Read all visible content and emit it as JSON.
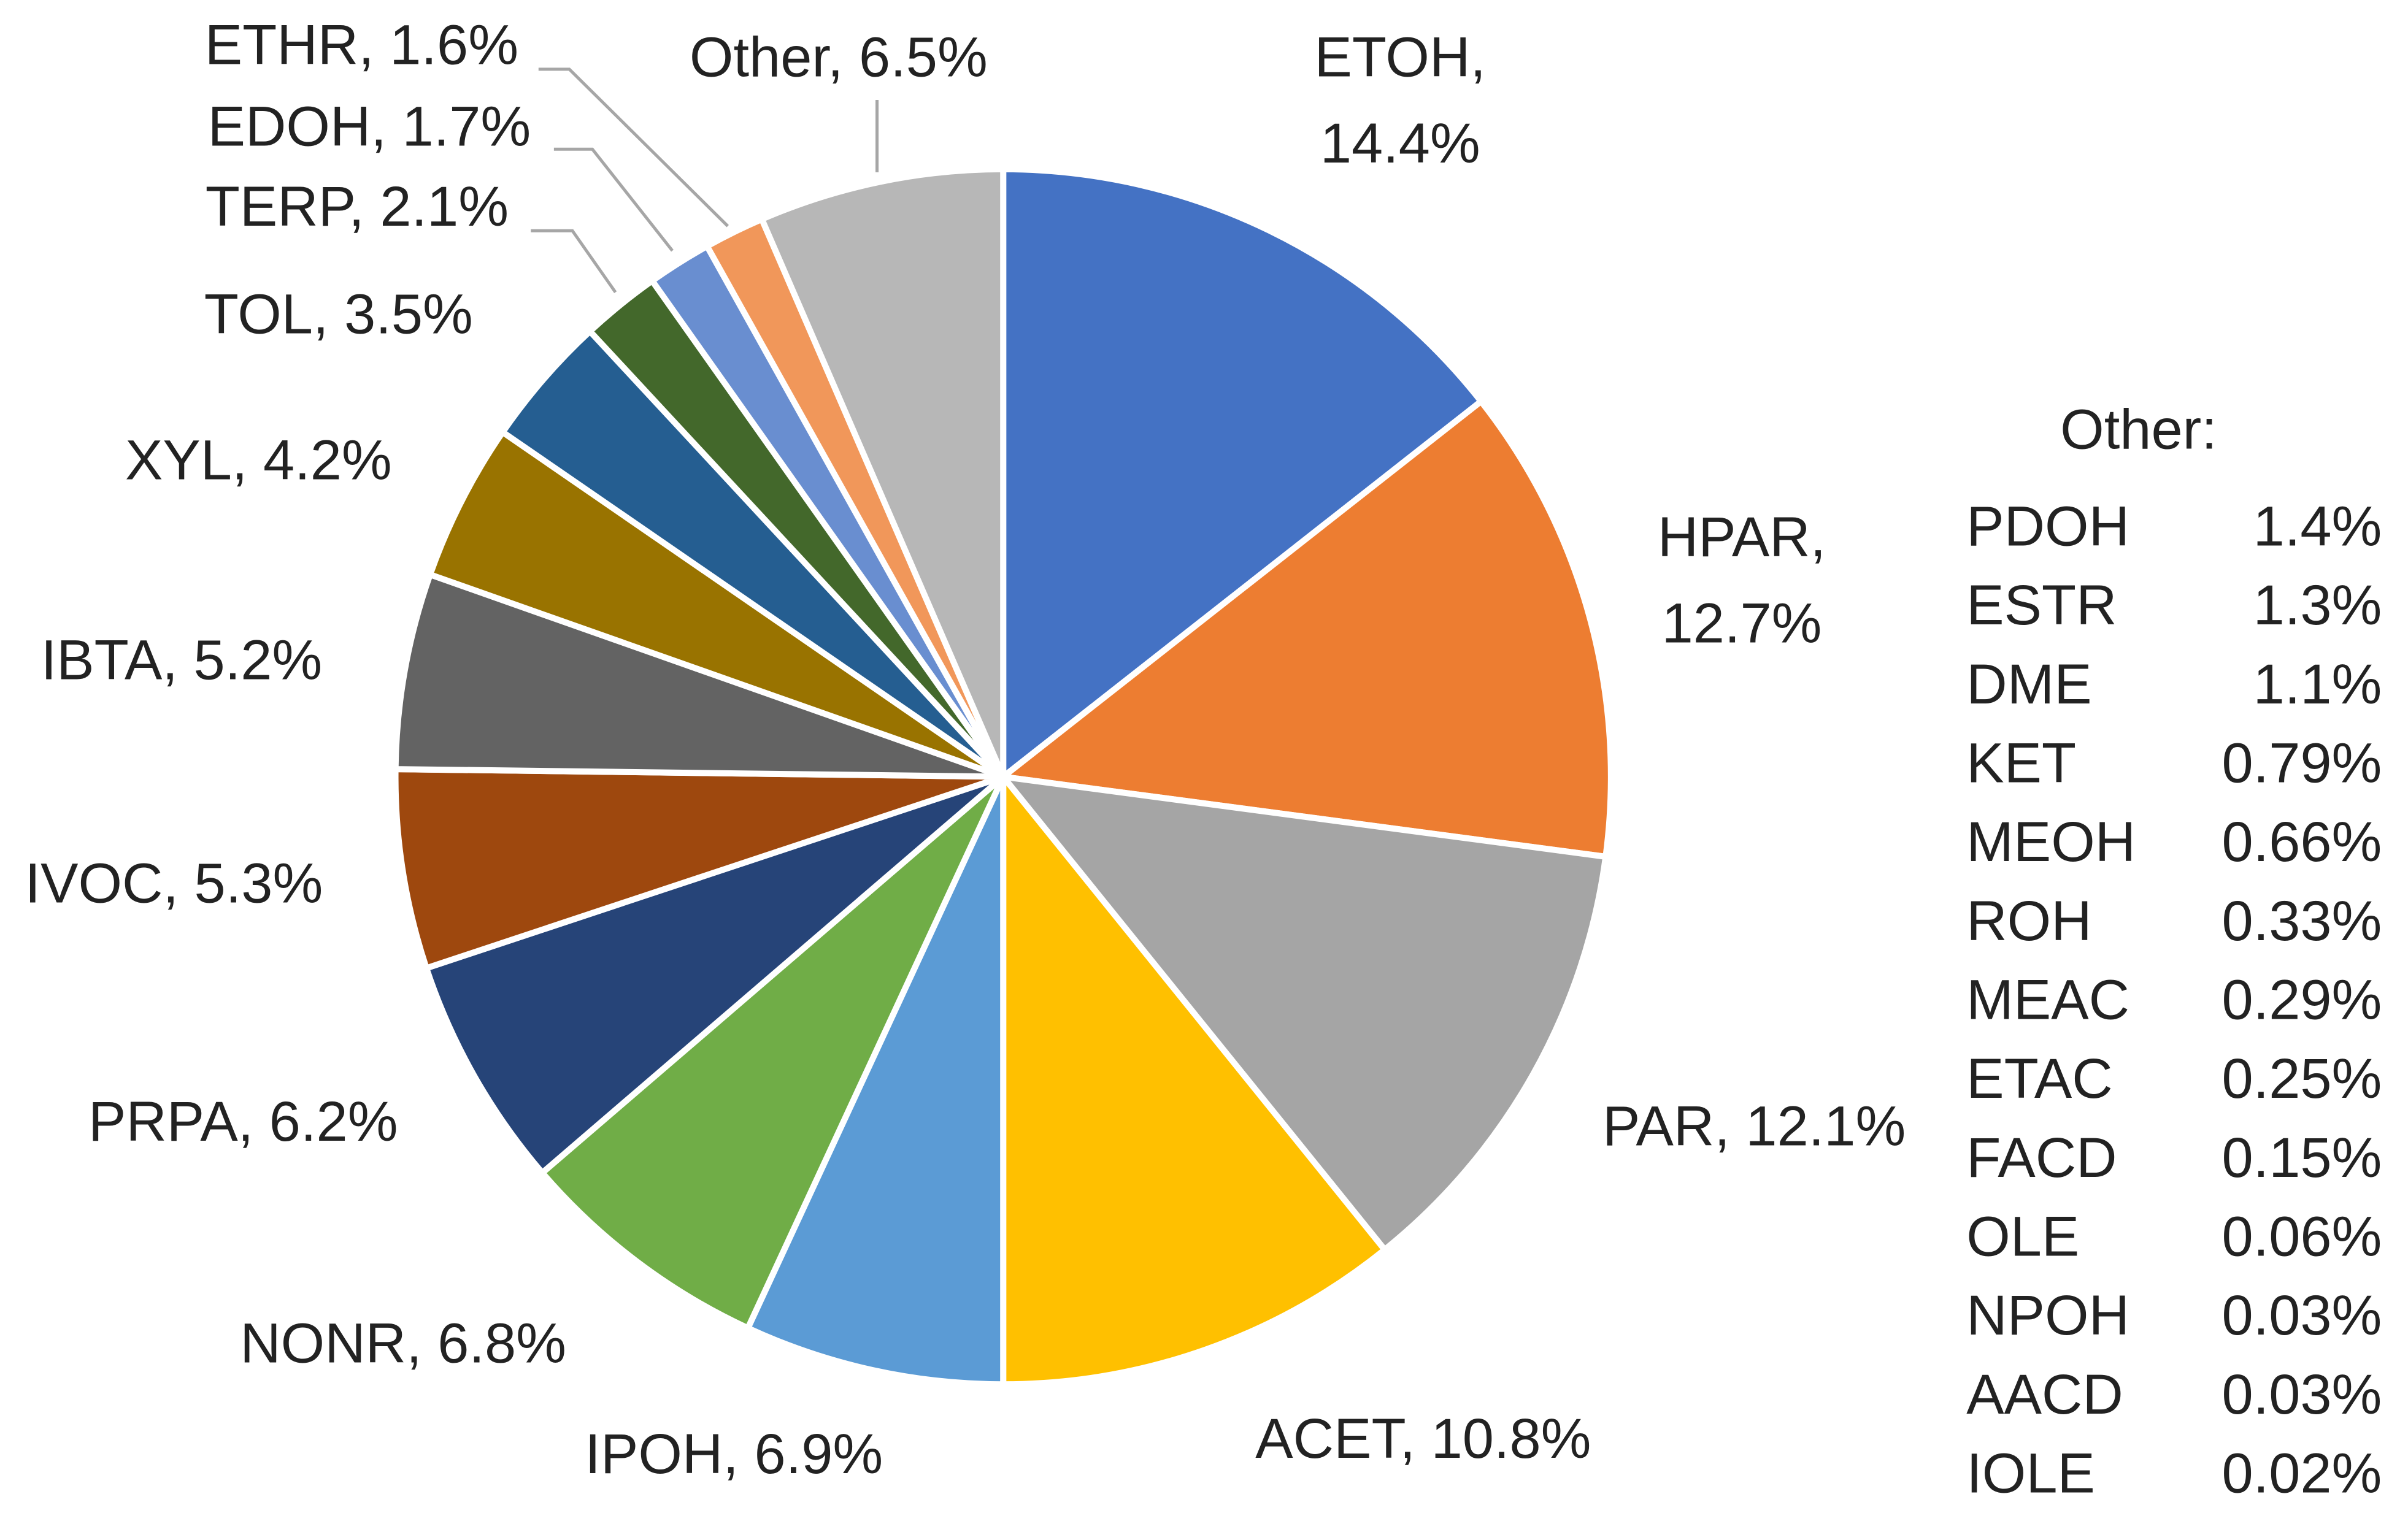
{
  "chart_data": {
    "type": "pie",
    "values": [
      14.4,
      12.7,
      12.1,
      10.8,
      6.9,
      6.8,
      6.2,
      5.3,
      5.2,
      4.2,
      3.5,
      2.1,
      1.7,
      1.6,
      6.5
    ],
    "value_labels": [
      "ETOH, 14.4%",
      "HPAR, 12.7%",
      "PAR, 12.1%",
      "ACET, 10.8%",
      "IPOH, 6.9%",
      "NONR, 6.8%",
      "PRPA, 6.2%",
      "IVOC, 5.3%",
      "IBTA, 5.2%",
      "XYL, 4.2%",
      "TOL, 3.5%",
      "TERP, 2.1%",
      "EDOH, 1.7%",
      "ETHR, 1.6%",
      "Other, 6.5%"
    ],
    "colors": [
      "#4472c4",
      "#ed7d31",
      "#a5a5a5",
      "#ffc000",
      "#5b9bd5",
      "#70ad47",
      "#264478",
      "#9e480e",
      "#636363",
      "#997300",
      "#255e91",
      "#43682b",
      "#698ed0",
      "#f1975a",
      "#b7b7b7"
    ]
  },
  "other_table": {
    "title": "Other:",
    "rows": [
      [
        "PDOH",
        "1.4%"
      ],
      [
        "ESTR",
        "1.3%"
      ],
      [
        "DME",
        "1.1%"
      ],
      [
        "KET",
        "0.79%"
      ],
      [
        "MEOH",
        "0.66%"
      ],
      [
        "ROH",
        "0.33%"
      ],
      [
        "MEAC",
        "0.29%"
      ],
      [
        "ETAC",
        "0.25%"
      ],
      [
        "FACD",
        "0.15%"
      ],
      [
        "OLE",
        "0.06%"
      ],
      [
        "NPOH",
        "0.03%"
      ],
      [
        "AACD",
        "0.03%"
      ],
      [
        "IOLE",
        "0.02%"
      ]
    ]
  }
}
